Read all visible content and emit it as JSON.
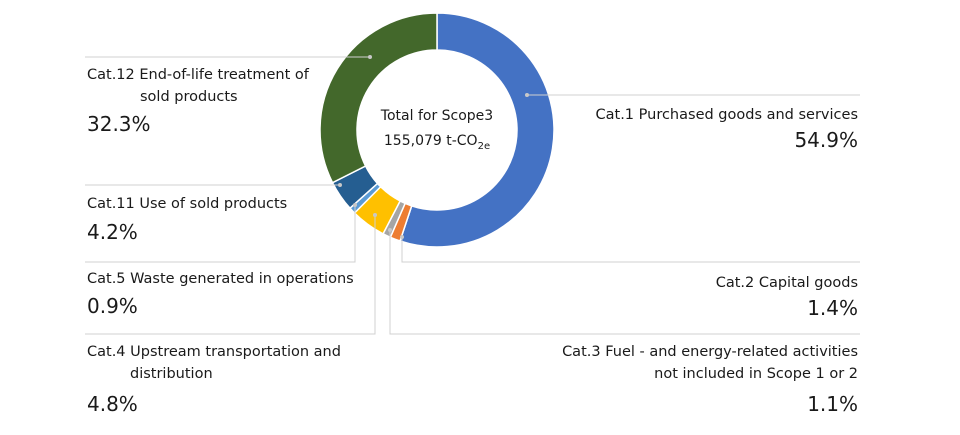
{
  "chart_data": {
    "type": "pie",
    "center_title": "Total for Scope3",
    "center_total": "155,079 t-CO",
    "center_total_subscript": "2e",
    "categories": [
      "Cat.1 Purchased goods and services",
      "Cat.2 Capital goods",
      "Cat.3 Fuel - and energy-related activities not included in Scope 1 or 2",
      "Cat.4 Upstream transportation and distribution",
      "Cat.5 Waste generated in operations",
      "Cat.11 Use of sold products",
      "Cat.12 End-of-life treatment of sold products"
    ],
    "values": [
      54.9,
      1.4,
      1.1,
      4.8,
      0.9,
      4.2,
      32.3
    ],
    "value_labels": [
      "54.9%",
      "1.4%",
      "1.1%",
      "4.8%",
      "0.9%",
      "4.2%",
      "32.3%"
    ],
    "colors": [
      "#4472c4",
      "#ed7d31",
      "#a5a5a5",
      "#ffc000",
      "#5b9bd5",
      "#255e91",
      "#43682b"
    ]
  }
}
